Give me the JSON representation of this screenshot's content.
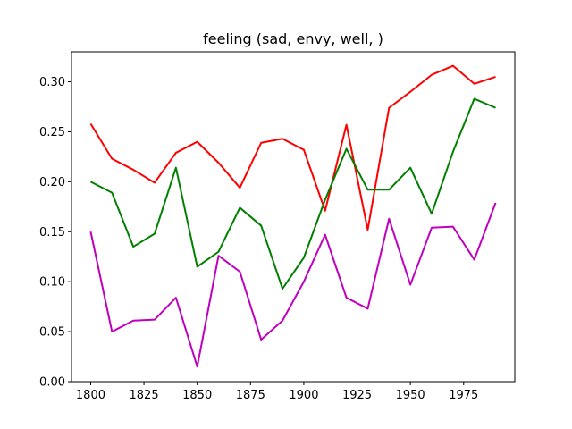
{
  "chart_data": {
    "type": "line",
    "title": "feeling (sad, envy, well, )",
    "xlabel": "",
    "ylabel": "",
    "x": [
      1800,
      1810,
      1820,
      1830,
      1840,
      1850,
      1860,
      1870,
      1880,
      1890,
      1900,
      1910,
      1920,
      1930,
      1940,
      1950,
      1960,
      1970,
      1980,
      1990
    ],
    "xlim": [
      1791,
      1999
    ],
    "ylim": [
      0.0,
      0.33
    ],
    "xticks": [
      1800,
      1825,
      1850,
      1875,
      1900,
      1925,
      1950,
      1975
    ],
    "xtick_labels": [
      "1800",
      "1825",
      "1850",
      "1875",
      "1900",
      "1925",
      "1950",
      "1975"
    ],
    "yticks": [
      0.0,
      0.05,
      0.1,
      0.15,
      0.2,
      0.25,
      0.3
    ],
    "ytick_labels": [
      "0.00",
      "0.05",
      "0.10",
      "0.15",
      "0.20",
      "0.25",
      "0.30"
    ],
    "grid": false,
    "legend": "none",
    "series": [
      {
        "color": "#ff0000",
        "values": [
          0.258,
          0.223,
          0.212,
          0.199,
          0.229,
          0.24,
          0.219,
          0.194,
          0.239,
          0.243,
          0.232,
          0.171,
          0.257,
          0.152,
          0.274,
          0.29,
          0.307,
          0.316,
          0.298,
          0.305
        ]
      },
      {
        "color": "#008000",
        "values": [
          0.2,
          0.189,
          0.135,
          0.148,
          0.214,
          0.115,
          0.13,
          0.174,
          0.156,
          0.093,
          0.124,
          0.182,
          0.233,
          0.192,
          0.192,
          0.214,
          0.168,
          0.23,
          0.283,
          0.274
        ]
      },
      {
        "color": "#bf00bf",
        "values": [
          0.15,
          0.05,
          0.061,
          0.062,
          0.084,
          0.015,
          0.126,
          0.11,
          0.042,
          0.061,
          0.1,
          0.147,
          0.084,
          0.073,
          0.163,
          0.097,
          0.154,
          0.155,
          0.122,
          0.179
        ]
      }
    ]
  }
}
